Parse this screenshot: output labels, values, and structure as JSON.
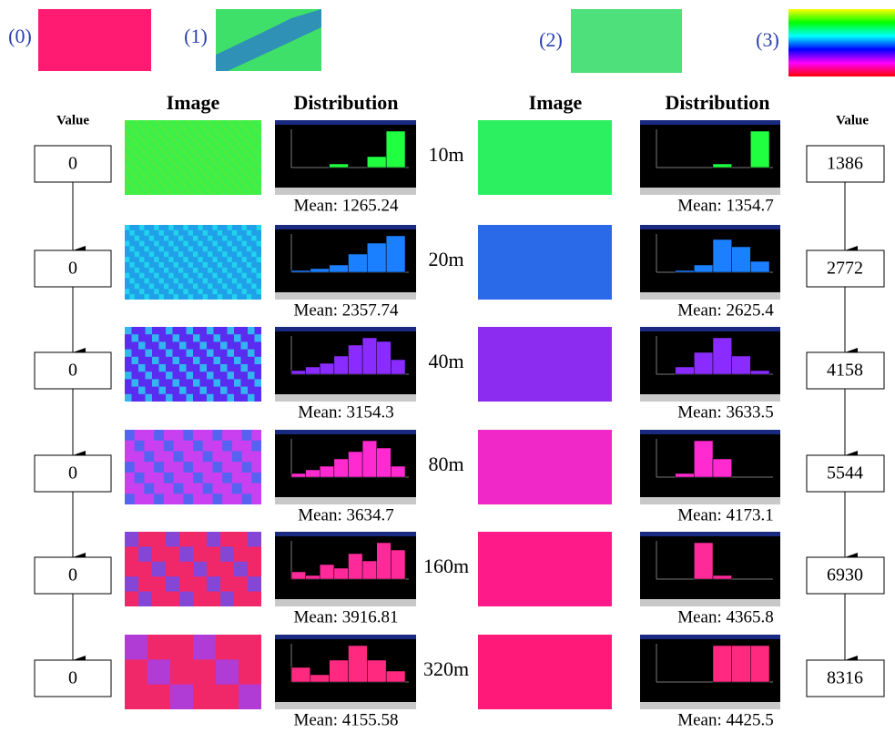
{
  "top_labels": [
    "(0)",
    "(1)",
    "(2)",
    "(3)"
  ],
  "headers": {
    "left_image": "Image",
    "left_distribution": "Distribution",
    "right_image": "Image",
    "right_distribution": "Distribution",
    "left_value": "Value",
    "right_value": "Value"
  },
  "rows": [
    {
      "left_value": "0",
      "scale": "10m",
      "left_mean": "Mean: 1265.24",
      "right_mean": "Mean: 1354.7",
      "right_value": "1386"
    },
    {
      "left_value": "0",
      "scale": "20m",
      "left_mean": "Mean: 2357.74",
      "right_mean": "Mean: 2625.4",
      "right_value": "2772"
    },
    {
      "left_value": "0",
      "scale": "40m",
      "left_mean": "Mean: 3154.3",
      "right_mean": "Mean: 3633.5",
      "right_value": "4158"
    },
    {
      "left_value": "0",
      "scale": "80m",
      "left_mean": "Mean: 3634.7",
      "right_mean": "Mean: 4173.1",
      "right_value": "5544"
    },
    {
      "left_value": "0",
      "scale": "160m",
      "left_mean": "Mean: 3916.81",
      "right_mean": "Mean: 4365.8",
      "right_value": "6930"
    },
    {
      "left_value": "0",
      "scale": "320m",
      "left_mean": "Mean: 4155.58",
      "right_mean": "Mean: 4425.5",
      "right_value": "8316"
    }
  ]
}
